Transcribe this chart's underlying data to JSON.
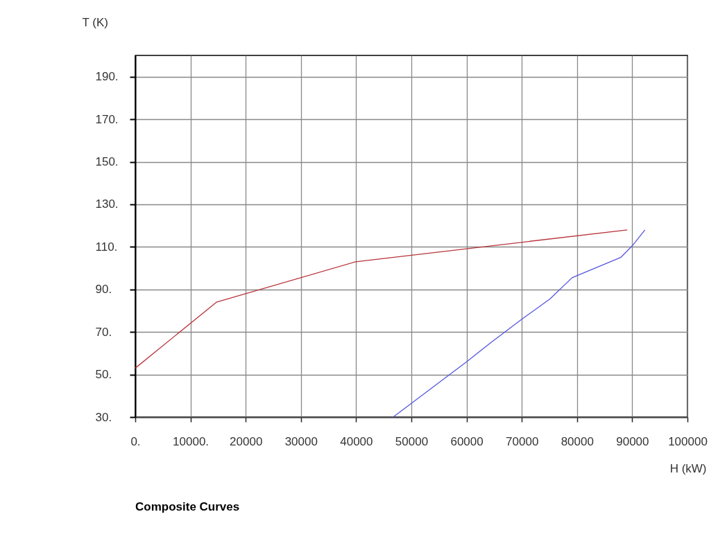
{
  "chart_data": {
    "type": "line",
    "title": "Composite Curves",
    "xlabel": "H (kW)",
    "ylabel": "T (K)",
    "xlim": [
      0,
      100000
    ],
    "xticks": [
      {
        "value": 0,
        "label": "0."
      },
      {
        "value": 10000,
        "label": "10000."
      },
      20000,
      30000,
      40000,
      50000,
      60000,
      70000,
      80000,
      90000,
      100000
    ],
    "ylim": [
      30,
      200
    ],
    "yticks": [
      {
        "value": 30,
        "label": "30."
      },
      {
        "value": 50,
        "label": "50."
      },
      {
        "value": 70,
        "label": "70."
      },
      {
        "value": 90,
        "label": "90."
      },
      {
        "value": 110,
        "label": "110."
      },
      {
        "value": 130,
        "label": "130."
      },
      {
        "value": 150,
        "label": "150."
      },
      {
        "value": 170,
        "label": "170."
      },
      {
        "value": 190,
        "label": "190."
      }
    ],
    "grid": true,
    "series": [
      {
        "color": "#b8333a",
        "x": [
          0,
          14700,
          39900,
          89100
        ],
        "values": [
          53,
          84,
          103,
          118
        ]
      },
      {
        "color": "#5555e0",
        "x": [
          46700,
          60000,
          64400,
          70000,
          75100,
          79100,
          87900,
          90000,
          92300
        ],
        "values": [
          30,
          56,
          65,
          76,
          85.5,
          95.5,
          105,
          110.5,
          118
        ]
      }
    ]
  }
}
